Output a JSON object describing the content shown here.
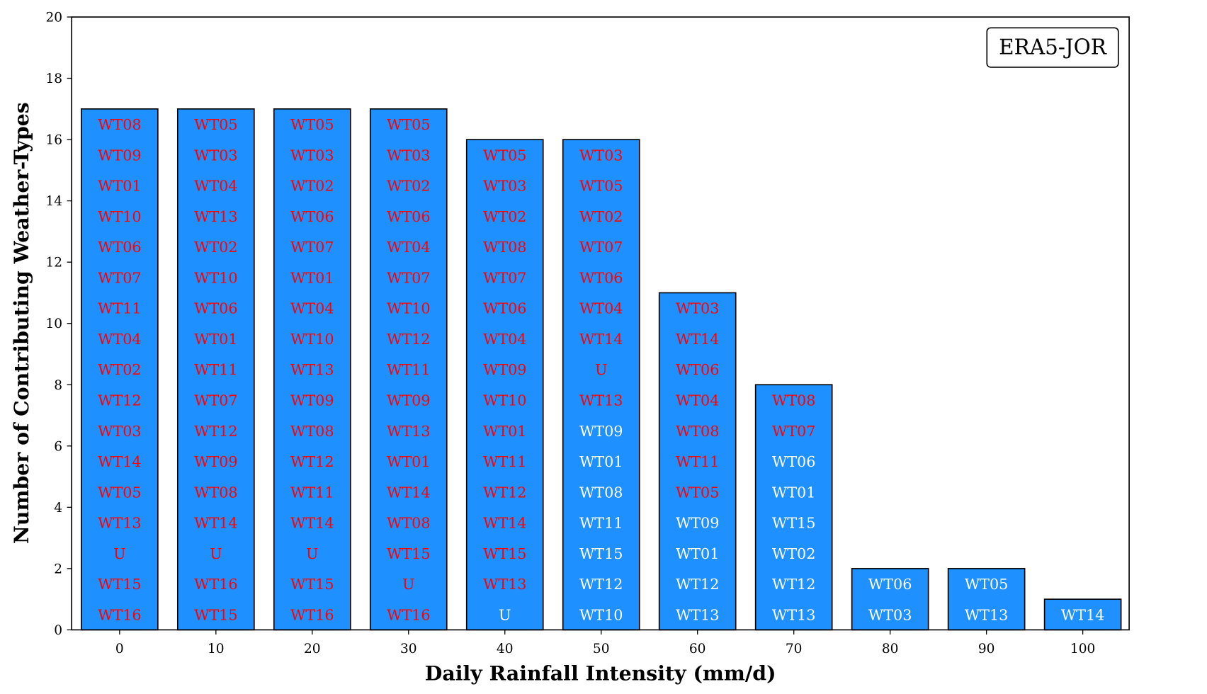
{
  "chart_data": {
    "type": "bar",
    "title": "",
    "xlabel": "Daily Rainfall Intensity (mm/d)",
    "ylabel": "Number of Contributing Weather-Types",
    "legend_text": "ERA5-JOR",
    "legend_position": "top-right",
    "ylim": [
      0,
      20
    ],
    "yticks": [
      "0",
      "2",
      "4",
      "6",
      "8",
      "10",
      "12",
      "14",
      "16",
      "18",
      "20"
    ],
    "categories": [
      "0",
      "10",
      "20",
      "30",
      "40",
      "50",
      "60",
      "70",
      "80",
      "90",
      "100"
    ],
    "values": [
      17,
      17,
      17,
      17,
      16,
      16,
      11,
      8,
      2,
      2,
      1
    ],
    "bar_color": "#1e90ff",
    "highlight_color": "#ff0000",
    "normal_label_color": "#ffffff",
    "bar_labels_top_to_bottom": [
      [
        "WT08",
        "WT09",
        "WT01",
        "WT10",
        "WT06",
        "WT07",
        "WT11",
        "WT04",
        "WT02",
        "WT12",
        "WT03",
        "WT14",
        "WT05",
        "WT13",
        "U",
        "WT15",
        "WT16"
      ],
      [
        "WT05",
        "WT03",
        "WT04",
        "WT13",
        "WT02",
        "WT10",
        "WT06",
        "WT01",
        "WT11",
        "WT07",
        "WT12",
        "WT09",
        "WT08",
        "WT14",
        "U",
        "WT16",
        "WT15"
      ],
      [
        "WT05",
        "WT03",
        "WT02",
        "WT06",
        "WT07",
        "WT01",
        "WT04",
        "WT10",
        "WT13",
        "WT09",
        "WT08",
        "WT12",
        "WT11",
        "WT14",
        "U",
        "WT15",
        "WT16"
      ],
      [
        "WT05",
        "WT03",
        "WT02",
        "WT06",
        "WT04",
        "WT07",
        "WT10",
        "WT12",
        "WT11",
        "WT09",
        "WT13",
        "WT01",
        "WT14",
        "WT08",
        "WT15",
        "U",
        "WT16"
      ],
      [
        "WT05",
        "WT03",
        "WT02",
        "WT08",
        "WT07",
        "WT06",
        "WT04",
        "WT09",
        "WT10",
        "WT01",
        "WT11",
        "WT12",
        "WT14",
        "WT15",
        "WT13",
        "U"
      ],
      [
        "WT03",
        "WT05",
        "WT02",
        "WT07",
        "WT06",
        "WT04",
        "WT14",
        "U",
        "WT13",
        "WT09",
        "WT01",
        "WT08",
        "WT11",
        "WT15",
        "WT12",
        "WT10"
      ],
      [
        "WT03",
        "WT14",
        "WT06",
        "WT04",
        "WT08",
        "WT11",
        "WT05",
        "WT09",
        "WT01",
        "WT12",
        "WT13"
      ],
      [
        "WT08",
        "WT07",
        "WT06",
        "WT01",
        "WT15",
        "WT02",
        "WT12",
        "WT13"
      ],
      [
        "WT06",
        "WT03"
      ],
      [
        "WT05",
        "WT13"
      ],
      [
        "WT14"
      ]
    ],
    "highlighted_count_per_bar": [
      17,
      17,
      17,
      17,
      15,
      9,
      7,
      2,
      0,
      0,
      0
    ]
  }
}
